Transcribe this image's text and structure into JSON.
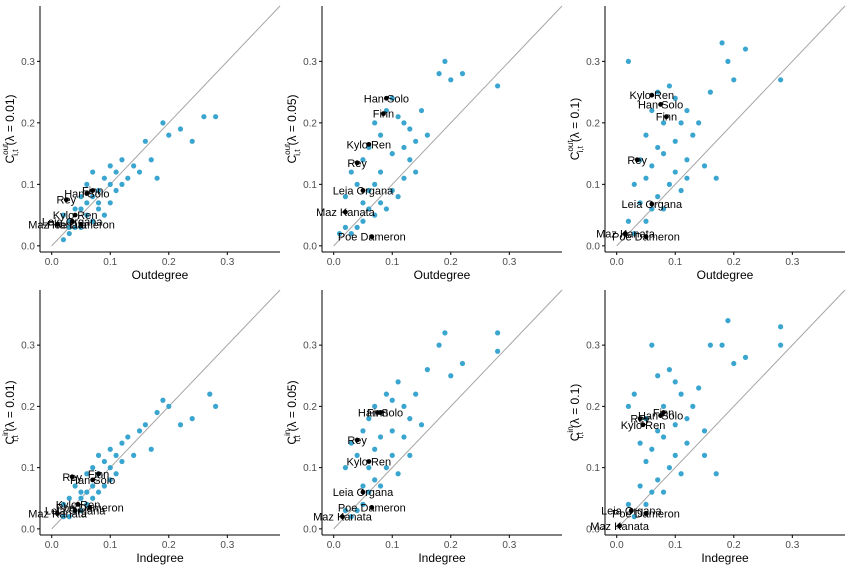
{
  "colors": {
    "points": "#3aa6cf",
    "highlight": "#000000",
    "diagonal": "#a6a6a6",
    "axis": "#000000"
  },
  "chart_data": [
    {
      "type": "scatter",
      "xlabel": "Outdegree",
      "ylabel": {
        "base": "C",
        "sup": "out",
        "sub": "i,t",
        "lambda": "(λ = 0.01)"
      },
      "xlim": [
        -0.02,
        0.39
      ],
      "ylim": [
        -0.01,
        0.39
      ],
      "xticks": [
        "0.0",
        "0.1",
        "0.2",
        "0.3"
      ],
      "yticks": [
        "0.0",
        "0.1",
        "0.2",
        "0.3"
      ],
      "points": [
        [
          0.02,
          0.05
        ],
        [
          0.03,
          0.04
        ],
        [
          0.04,
          0.06
        ],
        [
          0.05,
          0.08
        ],
        [
          0.06,
          0.1
        ],
        [
          0.07,
          0.12
        ],
        [
          0.08,
          0.09
        ],
        [
          0.09,
          0.11
        ],
        [
          0.1,
          0.13
        ],
        [
          0.11,
          0.12
        ],
        [
          0.12,
          0.14
        ],
        [
          0.13,
          0.11
        ],
        [
          0.14,
          0.13
        ],
        [
          0.15,
          0.12
        ],
        [
          0.16,
          0.17
        ],
        [
          0.17,
          0.14
        ],
        [
          0.18,
          0.11
        ],
        [
          0.19,
          0.2
        ],
        [
          0.2,
          0.18
        ],
        [
          0.22,
          0.19
        ],
        [
          0.24,
          0.17
        ],
        [
          0.26,
          0.21
        ],
        [
          0.28,
          0.21
        ],
        [
          0.03,
          0.02
        ],
        [
          0.05,
          0.03
        ],
        [
          0.07,
          0.04
        ],
        [
          0.08,
          0.06
        ],
        [
          0.09,
          0.05
        ],
        [
          0.1,
          0.07
        ],
        [
          0.11,
          0.09
        ],
        [
          0.04,
          0.03
        ],
        [
          0.06,
          0.05
        ],
        [
          0.07,
          0.08
        ],
        [
          0.08,
          0.07
        ],
        [
          0.1,
          0.1
        ],
        [
          0.12,
          0.1
        ],
        [
          0.02,
          0.01
        ],
        [
          0.03,
          0.03
        ],
        [
          0.05,
          0.06
        ],
        [
          0.06,
          0.07
        ]
      ],
      "labels": [
        {
          "text": "Finn",
          "x": 0.07,
          "y": 0.09
        },
        {
          "text": "Han Solo",
          "x": 0.06,
          "y": 0.085
        },
        {
          "text": "Rey",
          "x": 0.025,
          "y": 0.075
        },
        {
          "text": "Kylo Ren",
          "x": 0.04,
          "y": 0.05
        },
        {
          "text": "Leia Organa",
          "x": 0.035,
          "y": 0.04
        },
        {
          "text": "Poe Dameron",
          "x": 0.05,
          "y": 0.035
        },
        {
          "text": "Maz Kanata",
          "x": 0.01,
          "y": 0.035
        }
      ]
    },
    {
      "type": "scatter",
      "xlabel": "Outdegree",
      "ylabel": {
        "base": "C",
        "sup": "out",
        "sub": "i,t",
        "lambda": "(λ = 0.05)"
      },
      "xlim": [
        -0.02,
        0.39
      ],
      "ylim": [
        -0.01,
        0.39
      ],
      "xticks": [
        "0.0",
        "0.1",
        "0.2",
        "0.3"
      ],
      "yticks": [
        "0.0",
        "0.1",
        "0.2",
        "0.3"
      ],
      "points": [
        [
          0.02,
          0.08
        ],
        [
          0.03,
          0.12
        ],
        [
          0.04,
          0.1
        ],
        [
          0.05,
          0.14
        ],
        [
          0.06,
          0.16
        ],
        [
          0.07,
          0.2
        ],
        [
          0.08,
          0.18
        ],
        [
          0.09,
          0.22
        ],
        [
          0.1,
          0.24
        ],
        [
          0.11,
          0.21
        ],
        [
          0.12,
          0.2
        ],
        [
          0.13,
          0.19
        ],
        [
          0.14,
          0.17
        ],
        [
          0.15,
          0.22
        ],
        [
          0.16,
          0.18
        ],
        [
          0.18,
          0.28
        ],
        [
          0.19,
          0.3
        ],
        [
          0.2,
          0.27
        ],
        [
          0.22,
          0.28
        ],
        [
          0.28,
          0.26
        ],
        [
          0.03,
          0.02
        ],
        [
          0.05,
          0.04
        ],
        [
          0.07,
          0.05
        ],
        [
          0.08,
          0.07
        ],
        [
          0.09,
          0.06
        ],
        [
          0.1,
          0.09
        ],
        [
          0.11,
          0.08
        ],
        [
          0.12,
          0.11
        ],
        [
          0.04,
          0.03
        ],
        [
          0.06,
          0.06
        ],
        [
          0.02,
          0.03
        ],
        [
          0.05,
          0.07
        ],
        [
          0.06,
          0.09
        ],
        [
          0.07,
          0.1
        ],
        [
          0.08,
          0.12
        ],
        [
          0.1,
          0.15
        ],
        [
          0.12,
          0.16
        ],
        [
          0.13,
          0.14
        ],
        [
          0.14,
          0.12
        ],
        [
          0.01,
          0.02
        ]
      ],
      "labels": [
        {
          "text": "Han Solo",
          "x": 0.09,
          "y": 0.24
        },
        {
          "text": "Finn",
          "x": 0.085,
          "y": 0.215
        },
        {
          "text": "Kylo Ren",
          "x": 0.06,
          "y": 0.165
        },
        {
          "text": "Rey",
          "x": 0.04,
          "y": 0.135
        },
        {
          "text": "Leia Organa",
          "x": 0.05,
          "y": 0.09
        },
        {
          "text": "Maz Kanata",
          "x": 0.02,
          "y": 0.055
        },
        {
          "text": "Poe Dameron",
          "x": 0.065,
          "y": 0.015
        }
      ]
    },
    {
      "type": "scatter",
      "xlabel": "Outdegree",
      "ylabel": {
        "base": "C",
        "sup": "out",
        "sub": "i,t",
        "lambda": "(λ = 0.1)"
      },
      "xlim": [
        -0.02,
        0.39
      ],
      "ylim": [
        -0.01,
        0.39
      ],
      "xticks": [
        "0.0",
        "0.1",
        "0.2",
        "0.3"
      ],
      "yticks": [
        "0.0",
        "0.1",
        "0.2",
        "0.3"
      ],
      "points": [
        [
          0.02,
          0.3
        ],
        [
          0.03,
          0.1
        ],
        [
          0.04,
          0.14
        ],
        [
          0.05,
          0.18
        ],
        [
          0.06,
          0.22
        ],
        [
          0.07,
          0.25
        ],
        [
          0.08,
          0.2
        ],
        [
          0.09,
          0.26
        ],
        [
          0.1,
          0.24
        ],
        [
          0.11,
          0.2
        ],
        [
          0.12,
          0.22
        ],
        [
          0.13,
          0.18
        ],
        [
          0.14,
          0.2
        ],
        [
          0.16,
          0.25
        ],
        [
          0.18,
          0.33
        ],
        [
          0.19,
          0.3
        ],
        [
          0.2,
          0.27
        ],
        [
          0.22,
          0.32
        ],
        [
          0.28,
          0.27
        ],
        [
          0.03,
          0.02
        ],
        [
          0.05,
          0.04
        ],
        [
          0.06,
          0.06
        ],
        [
          0.07,
          0.08
        ],
        [
          0.08,
          0.06
        ],
        [
          0.09,
          0.1
        ],
        [
          0.1,
          0.12
        ],
        [
          0.11,
          0.09
        ],
        [
          0.12,
          0.14
        ],
        [
          0.04,
          0.07
        ],
        [
          0.05,
          0.11
        ],
        [
          0.06,
          0.13
        ],
        [
          0.07,
          0.16
        ],
        [
          0.08,
          0.15
        ],
        [
          0.1,
          0.17
        ],
        [
          0.12,
          0.11
        ],
        [
          0.02,
          0.04
        ],
        [
          0.15,
          0.13
        ],
        [
          0.17,
          0.11
        ]
      ],
      "labels": [
        {
          "text": "Kylo Ren",
          "x": 0.06,
          "y": 0.245
        },
        {
          "text": "Han Solo",
          "x": 0.075,
          "y": 0.23
        },
        {
          "text": "Finn",
          "x": 0.085,
          "y": 0.21
        },
        {
          "text": "Rey",
          "x": 0.035,
          "y": 0.14
        },
        {
          "text": "Leia Organa",
          "x": 0.06,
          "y": 0.068
        },
        {
          "text": "Maz Kanata",
          "x": 0.015,
          "y": 0.02
        },
        {
          "text": "Poe Dameron",
          "x": 0.05,
          "y": 0.015
        }
      ]
    },
    {
      "type": "scatter",
      "xlabel": "Indegree",
      "ylabel": {
        "base": "C",
        "sup": "in",
        "sub": "i,t",
        "lambda": "(λ = 0.01)"
      },
      "xlim": [
        -0.02,
        0.39
      ],
      "ylim": [
        -0.01,
        0.39
      ],
      "xticks": [
        "0.0",
        "0.1",
        "0.2",
        "0.3"
      ],
      "yticks": [
        "0.0",
        "0.1",
        "0.2",
        "0.3"
      ],
      "points": [
        [
          0.02,
          0.04
        ],
        [
          0.03,
          0.05
        ],
        [
          0.04,
          0.07
        ],
        [
          0.05,
          0.06
        ],
        [
          0.06,
          0.09
        ],
        [
          0.07,
          0.1
        ],
        [
          0.08,
          0.12
        ],
        [
          0.09,
          0.11
        ],
        [
          0.1,
          0.13
        ],
        [
          0.11,
          0.12
        ],
        [
          0.12,
          0.14
        ],
        [
          0.13,
          0.15
        ],
        [
          0.14,
          0.12
        ],
        [
          0.15,
          0.16
        ],
        [
          0.16,
          0.17
        ],
        [
          0.17,
          0.13
        ],
        [
          0.18,
          0.19
        ],
        [
          0.19,
          0.21
        ],
        [
          0.2,
          0.2
        ],
        [
          0.22,
          0.17
        ],
        [
          0.24,
          0.18
        ],
        [
          0.27,
          0.22
        ],
        [
          0.28,
          0.2
        ],
        [
          0.03,
          0.02
        ],
        [
          0.05,
          0.03
        ],
        [
          0.06,
          0.04
        ],
        [
          0.07,
          0.05
        ],
        [
          0.08,
          0.06
        ],
        [
          0.09,
          0.07
        ],
        [
          0.1,
          0.08
        ],
        [
          0.11,
          0.09
        ],
        [
          0.04,
          0.03
        ],
        [
          0.05,
          0.05
        ],
        [
          0.06,
          0.06
        ],
        [
          0.07,
          0.07
        ],
        [
          0.08,
          0.09
        ],
        [
          0.1,
          0.1
        ],
        [
          0.02,
          0.02
        ],
        [
          0.12,
          0.11
        ]
      ],
      "labels": [
        {
          "text": "Finn",
          "x": 0.08,
          "y": 0.09
        },
        {
          "text": "Rey",
          "x": 0.035,
          "y": 0.085
        },
        {
          "text": "Han Solo",
          "x": 0.07,
          "y": 0.08
        },
        {
          "text": "Kylo Ren",
          "x": 0.045,
          "y": 0.04
        },
        {
          "text": "Poe Dameron",
          "x": 0.065,
          "y": 0.035
        },
        {
          "text": "Leia Organa",
          "x": 0.04,
          "y": 0.03
        },
        {
          "text": "Maz Kanata",
          "x": 0.01,
          "y": 0.025
        }
      ]
    },
    {
      "type": "scatter",
      "xlabel": "Indegree",
      "ylabel": {
        "base": "C",
        "sup": "in",
        "sub": "i,t",
        "lambda": "(λ = 0.05)"
      },
      "xlim": [
        -0.02,
        0.39
      ],
      "ylim": [
        -0.01,
        0.39
      ],
      "xticks": [
        "0.0",
        "0.1",
        "0.2",
        "0.3"
      ],
      "yticks": [
        "0.0",
        "0.1",
        "0.2",
        "0.3"
      ],
      "points": [
        [
          0.02,
          0.1
        ],
        [
          0.03,
          0.14
        ],
        [
          0.04,
          0.12
        ],
        [
          0.05,
          0.16
        ],
        [
          0.06,
          0.18
        ],
        [
          0.07,
          0.2
        ],
        [
          0.08,
          0.19
        ],
        [
          0.09,
          0.22
        ],
        [
          0.1,
          0.21
        ],
        [
          0.11,
          0.24
        ],
        [
          0.12,
          0.2
        ],
        [
          0.13,
          0.18
        ],
        [
          0.14,
          0.22
        ],
        [
          0.15,
          0.17
        ],
        [
          0.16,
          0.26
        ],
        [
          0.18,
          0.3
        ],
        [
          0.19,
          0.32
        ],
        [
          0.2,
          0.25
        ],
        [
          0.22,
          0.27
        ],
        [
          0.28,
          0.32
        ],
        [
          0.28,
          0.29
        ],
        [
          0.03,
          0.02
        ],
        [
          0.05,
          0.04
        ],
        [
          0.06,
          0.06
        ],
        [
          0.07,
          0.08
        ],
        [
          0.08,
          0.07
        ],
        [
          0.09,
          0.1
        ],
        [
          0.1,
          0.12
        ],
        [
          0.11,
          0.09
        ],
        [
          0.12,
          0.15
        ],
        [
          0.04,
          0.03
        ],
        [
          0.05,
          0.07
        ],
        [
          0.06,
          0.1
        ],
        [
          0.07,
          0.13
        ],
        [
          0.08,
          0.15
        ],
        [
          0.1,
          0.16
        ],
        [
          0.02,
          0.03
        ],
        [
          0.13,
          0.12
        ]
      ],
      "labels": [
        {
          "text": "Han Solo",
          "x": 0.08,
          "y": 0.19
        },
        {
          "text": "Finn",
          "x": 0.075,
          "y": 0.19
        },
        {
          "text": "Rey",
          "x": 0.04,
          "y": 0.145
        },
        {
          "text": "Kylo Ren",
          "x": 0.06,
          "y": 0.11
        },
        {
          "text": "Leia Organa",
          "x": 0.05,
          "y": 0.06
        },
        {
          "text": "Poe Dameron",
          "x": 0.065,
          "y": 0.035
        },
        {
          "text": "Maz Kanata",
          "x": 0.015,
          "y": 0.02
        }
      ]
    },
    {
      "type": "scatter",
      "xlabel": "Indegree",
      "ylabel": {
        "base": "C",
        "sup": "in",
        "sub": "i,t",
        "lambda": "(λ = 0.1)"
      },
      "xlim": [
        -0.02,
        0.39
      ],
      "ylim": [
        -0.01,
        0.39
      ],
      "xticks": [
        "0.0",
        "0.1",
        "0.2",
        "0.3"
      ],
      "yticks": [
        "0.0",
        "0.1",
        "0.2",
        "0.3"
      ],
      "points": [
        [
          0.02,
          0.2
        ],
        [
          0.03,
          0.22
        ],
        [
          0.04,
          0.14
        ],
        [
          0.05,
          0.18
        ],
        [
          0.06,
          0.3
        ],
        [
          0.07,
          0.25
        ],
        [
          0.08,
          0.2
        ],
        [
          0.09,
          0.26
        ],
        [
          0.1,
          0.24
        ],
        [
          0.11,
          0.22
        ],
        [
          0.12,
          0.18
        ],
        [
          0.13,
          0.2
        ],
        [
          0.14,
          0.23
        ],
        [
          0.15,
          0.16
        ],
        [
          0.16,
          0.3
        ],
        [
          0.18,
          0.3
        ],
        [
          0.19,
          0.34
        ],
        [
          0.2,
          0.27
        ],
        [
          0.22,
          0.28
        ],
        [
          0.28,
          0.33
        ],
        [
          0.28,
          0.3
        ],
        [
          0.03,
          0.02
        ],
        [
          0.05,
          0.04
        ],
        [
          0.06,
          0.06
        ],
        [
          0.07,
          0.08
        ],
        [
          0.08,
          0.06
        ],
        [
          0.09,
          0.1
        ],
        [
          0.1,
          0.12
        ],
        [
          0.11,
          0.09
        ],
        [
          0.12,
          0.14
        ],
        [
          0.04,
          0.07
        ],
        [
          0.05,
          0.11
        ],
        [
          0.06,
          0.13
        ],
        [
          0.07,
          0.16
        ],
        [
          0.08,
          0.15
        ],
        [
          0.1,
          0.17
        ],
        [
          0.02,
          0.04
        ],
        [
          0.15,
          0.12
        ],
        [
          0.17,
          0.09
        ]
      ],
      "labels": [
        {
          "text": "Finn",
          "x": 0.08,
          "y": 0.19
        },
        {
          "text": "Han Solo",
          "x": 0.075,
          "y": 0.185
        },
        {
          "text": "Rey",
          "x": 0.04,
          "y": 0.18
        },
        {
          "text": "Kylo Ren",
          "x": 0.045,
          "y": 0.17
        },
        {
          "text": "Leia Organa",
          "x": 0.025,
          "y": 0.03
        },
        {
          "text": "Poe Dameron",
          "x": 0.05,
          "y": 0.025
        },
        {
          "text": "Maz Kanata",
          "x": 0.005,
          "y": 0.005
        }
      ]
    }
  ]
}
